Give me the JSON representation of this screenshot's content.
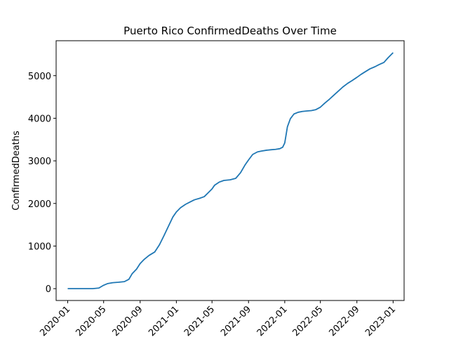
{
  "chart_data": {
    "type": "line",
    "title": "Puerto Rico  ConfirmedDeaths Over Time",
    "xlabel": "",
    "ylabel": "ConfirmedDeaths",
    "xlim": [
      "2019-11-23",
      "2023-02-07"
    ],
    "ylim": [
      -278,
      5820
    ],
    "x_ticks": [
      "2020-01",
      "2020-05",
      "2020-09",
      "2021-01",
      "2021-05",
      "2021-09",
      "2022-01",
      "2022-05",
      "2022-09",
      "2023-01"
    ],
    "y_ticks": [
      0,
      1000,
      2000,
      3000,
      4000,
      5000
    ],
    "grid": false,
    "legend": "none",
    "series": [
      {
        "color": "#1f77b4",
        "x": [
          "2020-01-01",
          "2020-02-15",
          "2020-03-25",
          "2020-04-15",
          "2020-05-01",
          "2020-05-15",
          "2020-06-01",
          "2020-06-20",
          "2020-07-10",
          "2020-07-25",
          "2020-08-05",
          "2020-08-20",
          "2020-09-01",
          "2020-09-15",
          "2020-10-01",
          "2020-10-20",
          "2020-11-05",
          "2020-11-20",
          "2020-12-05",
          "2020-12-20",
          "2021-01-01",
          "2021-01-15",
          "2021-02-01",
          "2021-02-15",
          "2021-03-01",
          "2021-03-05",
          "2021-03-20",
          "2021-04-05",
          "2021-04-15",
          "2021-05-01",
          "2021-05-10",
          "2021-05-25",
          "2021-06-10",
          "2021-07-01",
          "2021-07-20",
          "2021-08-05",
          "2021-08-20",
          "2021-09-01",
          "2021-09-15",
          "2021-10-01",
          "2021-10-15",
          "2021-11-01",
          "2021-11-15",
          "2021-12-01",
          "2021-12-15",
          "2021-12-25",
          "2022-01-01",
          "2022-01-10",
          "2022-01-20",
          "2022-02-01",
          "2022-02-15",
          "2022-03-01",
          "2022-03-15",
          "2022-04-01",
          "2022-04-15",
          "2022-05-01",
          "2022-05-15",
          "2022-06-01",
          "2022-06-15",
          "2022-07-01",
          "2022-07-15",
          "2022-08-01",
          "2022-08-15",
          "2022-09-01",
          "2022-09-15",
          "2022-10-01",
          "2022-10-15",
          "2022-11-01",
          "2022-11-15",
          "2022-12-01",
          "2022-12-15",
          "2023-01-01"
        ],
        "y": [
          0,
          0,
          0,
          15,
          80,
          120,
          140,
          150,
          165,
          220,
          350,
          460,
          590,
          690,
          780,
          860,
          1030,
          1240,
          1460,
          1680,
          1800,
          1900,
          1980,
          2030,
          2080,
          2090,
          2120,
          2160,
          2230,
          2340,
          2430,
          2500,
          2540,
          2555,
          2590,
          2720,
          2900,
          3020,
          3150,
          3210,
          3230,
          3250,
          3260,
          3270,
          3285,
          3320,
          3420,
          3800,
          3990,
          4100,
          4140,
          4160,
          4170,
          4180,
          4200,
          4260,
          4350,
          4450,
          4540,
          4640,
          4730,
          4820,
          4880,
          4960,
          5030,
          5100,
          5160,
          5210,
          5260,
          5310,
          5420,
          5540
        ]
      }
    ]
  }
}
